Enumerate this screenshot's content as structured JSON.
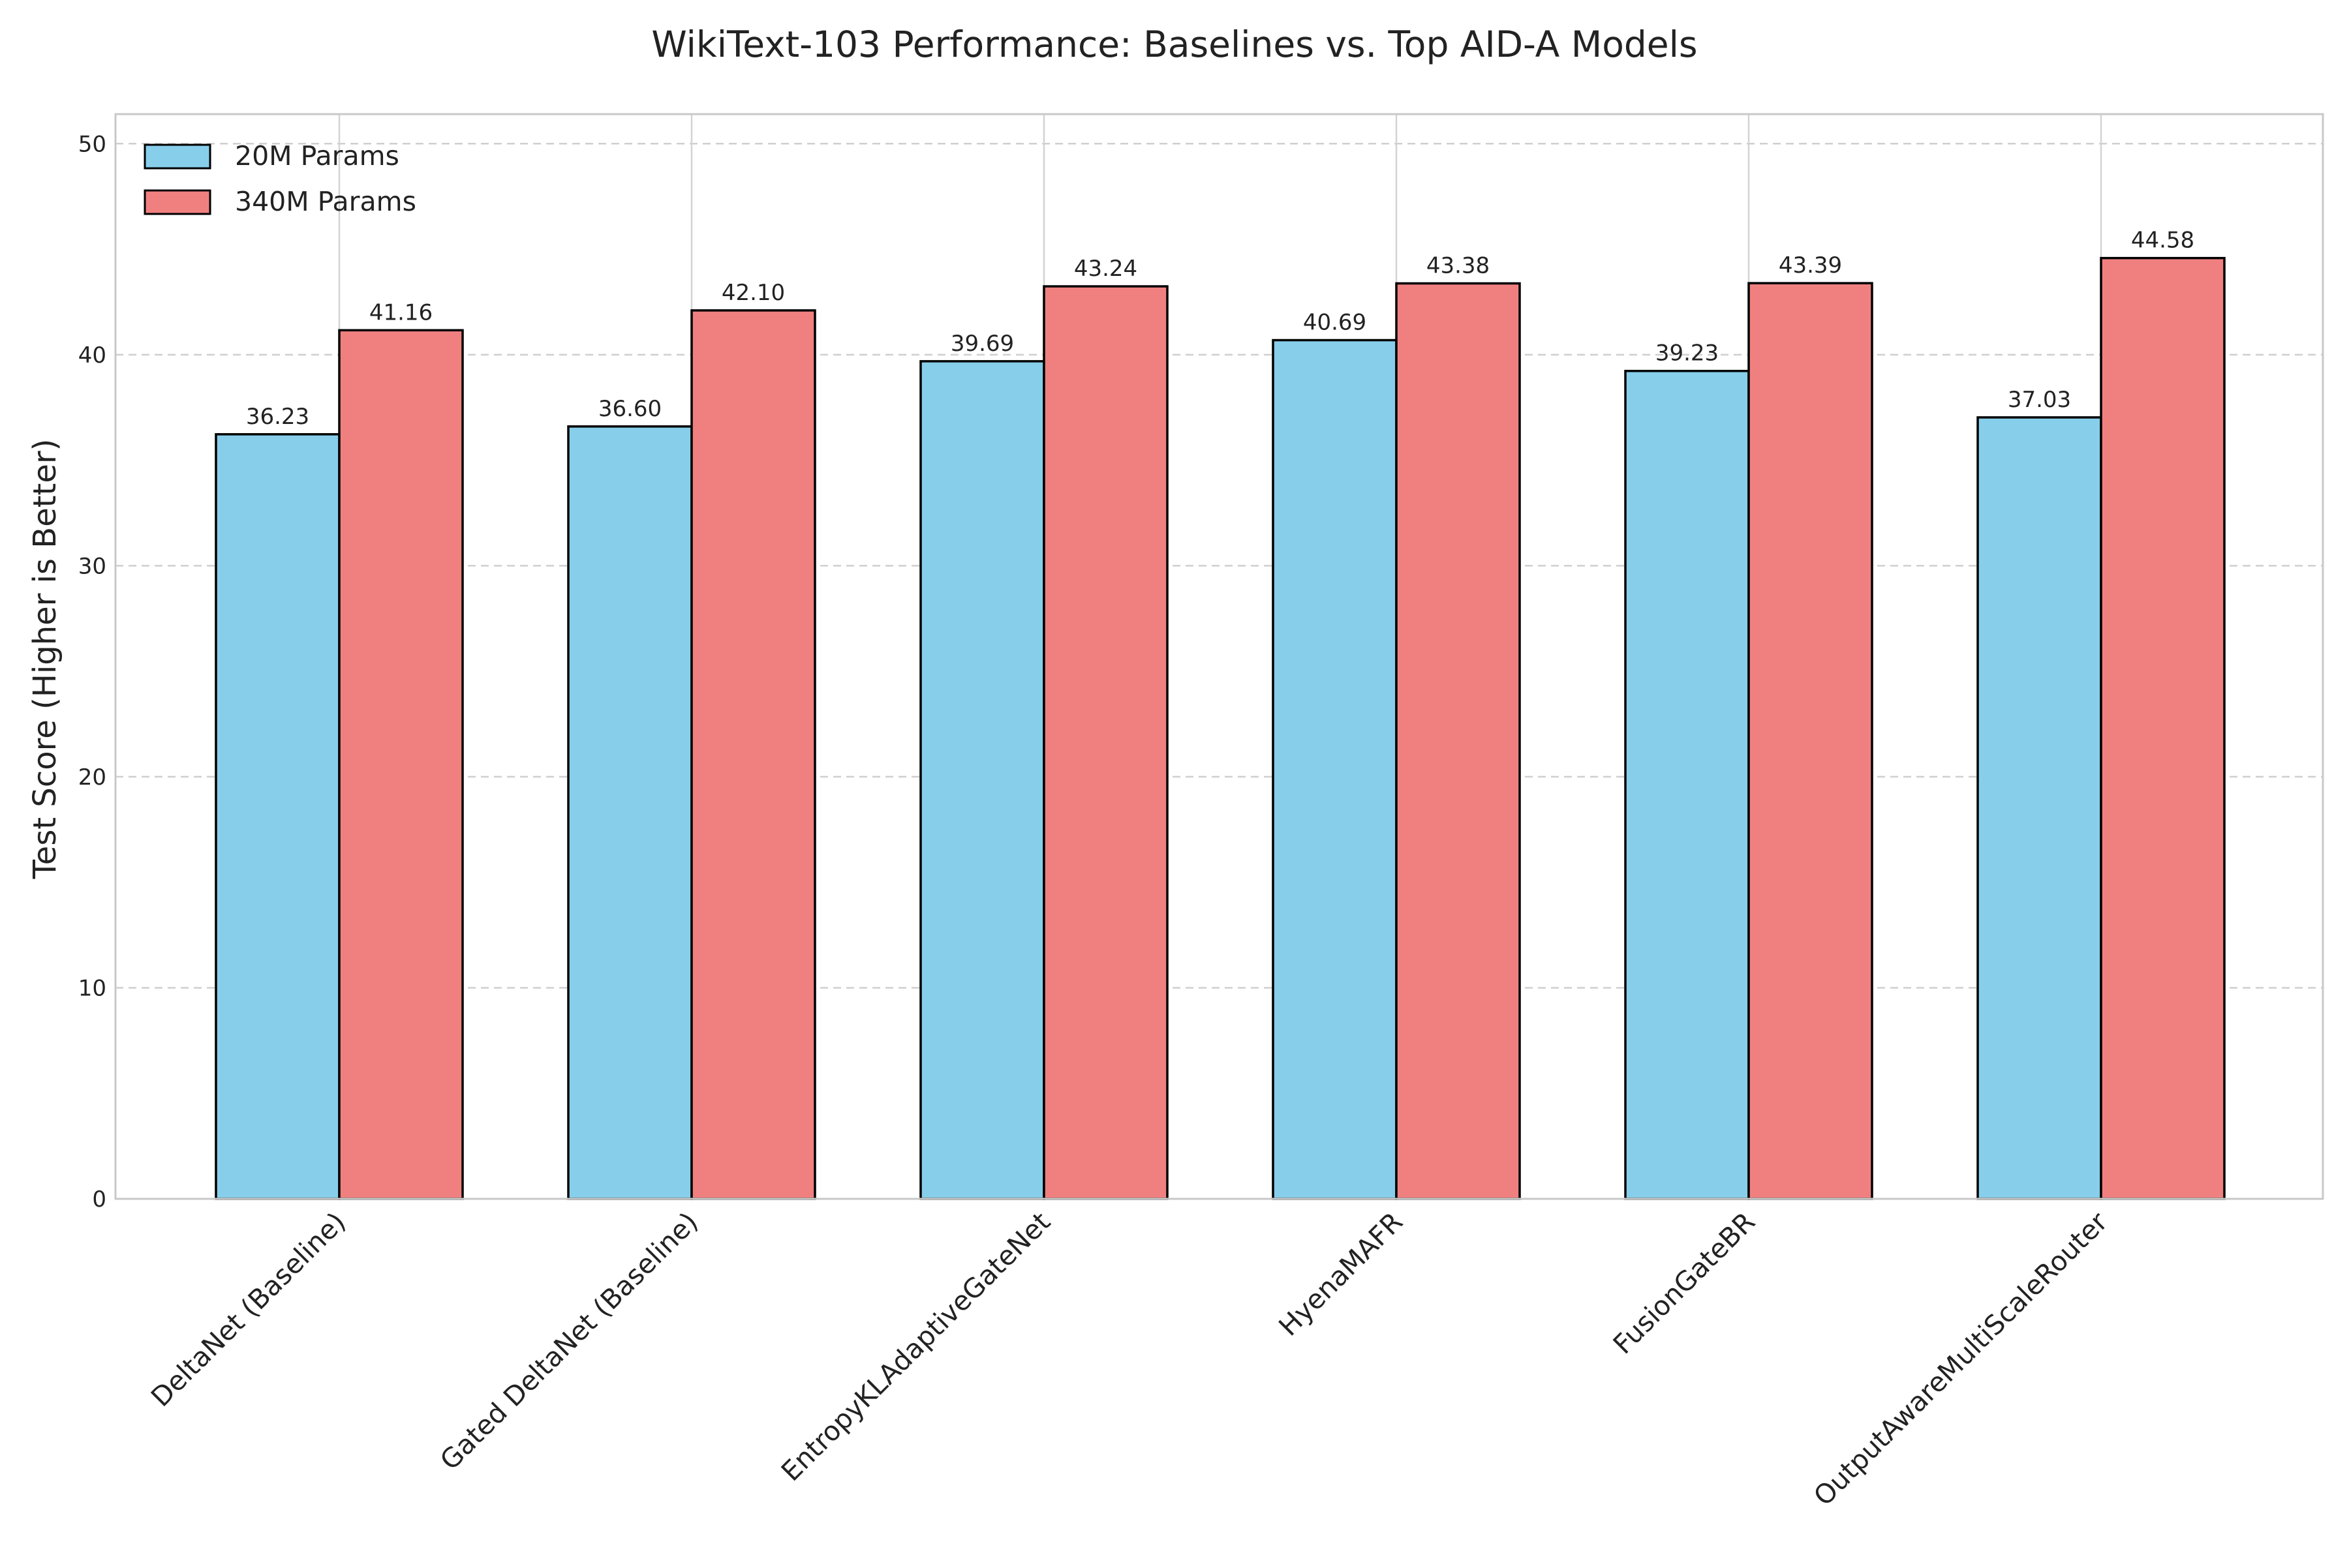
{
  "chart_data": {
    "type": "bar",
    "title": "WikiText-103 Performance: Baselines vs. Top AID-A Models",
    "xlabel": "",
    "ylabel": "Test Score (Higher is Better)",
    "ylim": [
      0,
      51.4
    ],
    "yticks": [
      0,
      10,
      20,
      30,
      40,
      50
    ],
    "grid": true,
    "legend_position": "top-left",
    "categories": [
      "DeltaNet (Baseline)",
      "Gated DeltaNet (Baseline)",
      "EntropyKLAdaptiveGateNet",
      "HyenaMAFR",
      "FusionGateBR",
      "OutputAwareMultiScaleRouter"
    ],
    "series": [
      {
        "name": "20M Params",
        "color": "#87CEEB",
        "values": [
          36.23,
          36.6,
          39.69,
          40.69,
          39.23,
          37.03
        ],
        "labels": [
          "36.23",
          "36.60",
          "39.69",
          "40.69",
          "39.23",
          "37.03"
        ]
      },
      {
        "name": "340M Params",
        "color": "#F08080",
        "values": [
          41.16,
          42.1,
          43.24,
          43.38,
          43.39,
          44.58
        ],
        "labels": [
          "41.16",
          "42.10",
          "43.24",
          "43.38",
          "43.39",
          "44.58"
        ]
      }
    ]
  }
}
